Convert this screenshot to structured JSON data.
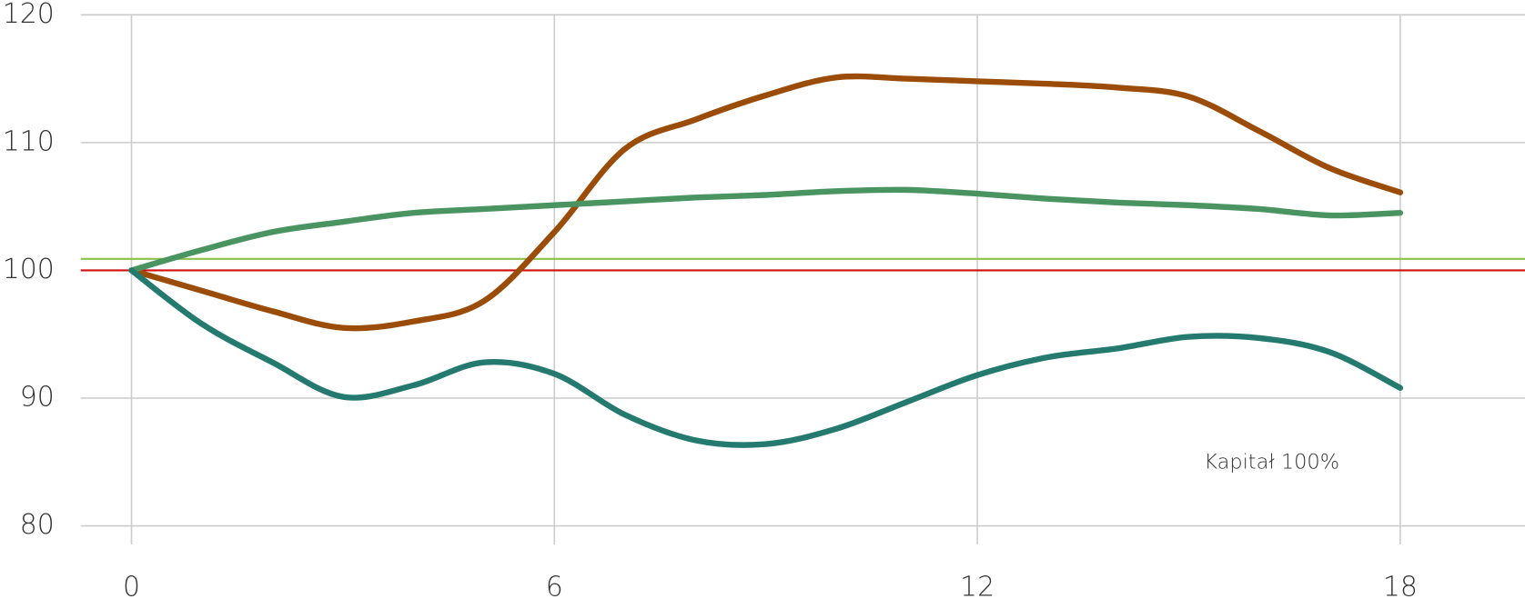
{
  "chart_data": {
    "type": "line",
    "x": [
      0,
      1,
      2,
      3,
      4,
      5,
      6,
      7,
      8,
      9,
      10,
      11,
      12,
      13,
      14,
      15,
      16,
      17,
      18
    ],
    "series": [
      {
        "color": "#9a4c08",
        "values": [
          100,
          98.4,
          96.8,
          95.5,
          96.0,
          97.6,
          103.0,
          109.5,
          111.8,
          113.7,
          115.1,
          115.0,
          114.8,
          114.6,
          114.3,
          113.6,
          110.9,
          108.0,
          106.1
        ]
      },
      {
        "color": "#4a9461",
        "values": [
          100,
          101.6,
          103.0,
          103.8,
          104.5,
          104.8,
          105.1,
          105.4,
          105.7,
          105.9,
          106.2,
          106.3,
          106.0,
          105.6,
          105.3,
          105.1,
          104.8,
          104.3,
          104.5
        ]
      },
      {
        "color": "#247a6e",
        "values": [
          100,
          95.8,
          92.8,
          90.1,
          91.0,
          92.8,
          91.9,
          88.7,
          86.7,
          86.4,
          87.6,
          89.7,
          91.8,
          93.2,
          93.9,
          94.8,
          94.7,
          93.6,
          90.8
        ]
      }
    ],
    "reference_lines": [
      {
        "value": 100.9,
        "color": "#8cc04a"
      },
      {
        "value": 100,
        "color": "#d10f0f"
      }
    ],
    "annotation": "Kapitał 100%",
    "xlim": [
      -0.72,
      19.77
    ],
    "ylim": [
      80,
      120
    ],
    "xticks": [
      0,
      6,
      12,
      18
    ],
    "yticks": [
      80,
      90,
      100,
      110,
      120
    ],
    "grid": true
  }
}
